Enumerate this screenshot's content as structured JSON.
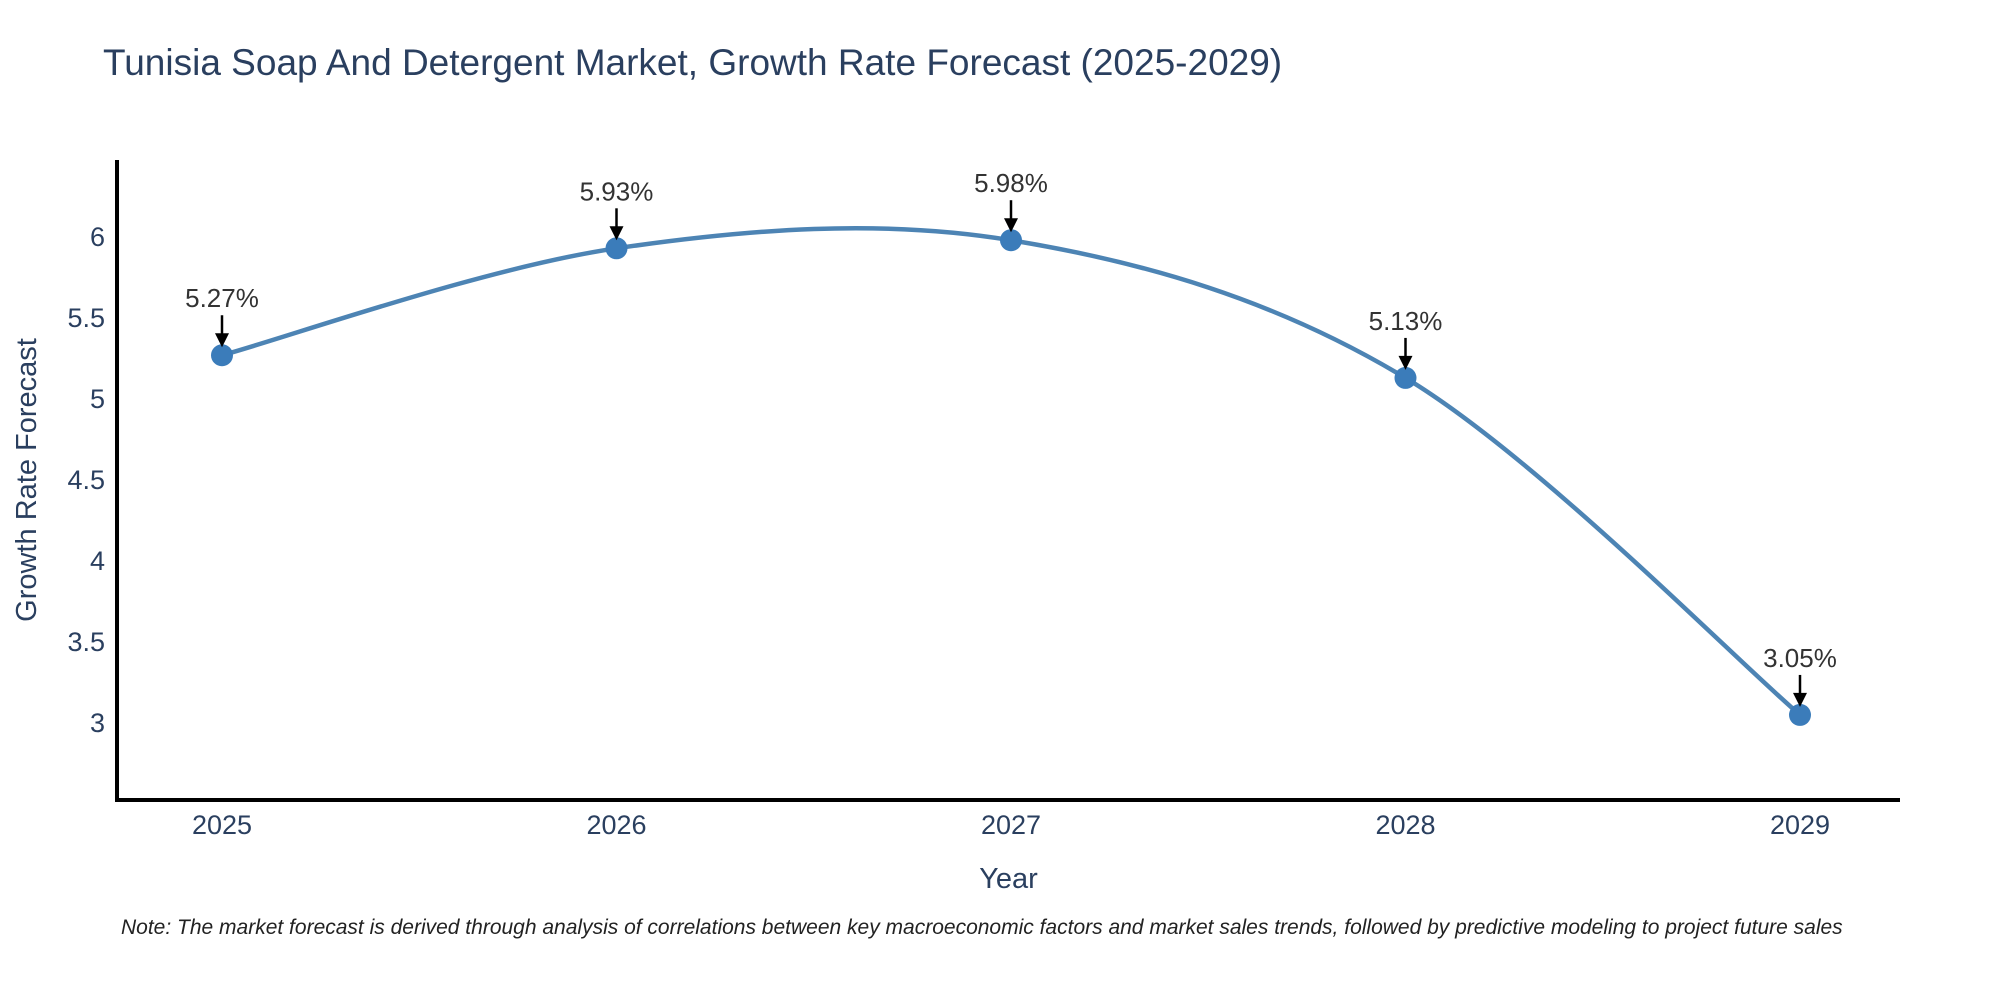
{
  "page": {
    "note": "Note: The market forecast is derived through analysis of correlations between key macroeconomic factors and market sales trends, followed by predictive modeling to project future sales"
  },
  "chart_data": {
    "type": "line",
    "line_shape": "spline",
    "title": "Tunisia Soap And Detergent Market, Growth Rate Forecast (2025-2029)",
    "xlabel": "Year",
    "ylabel": "Growth Rate Forecast",
    "x": [
      2025,
      2026,
      2027,
      2028,
      2029
    ],
    "y": [
      5.27,
      5.93,
      5.98,
      5.13,
      3.05
    ],
    "point_labels": [
      "5.27%",
      "5.93%",
      "5.98%",
      "5.13%",
      "3.05%"
    ],
    "yticks": [
      6,
      5.5,
      5,
      4.5,
      4,
      3.5,
      3
    ],
    "ylim": [
      2.525,
      6.475
    ],
    "grid": false,
    "legend_position": "none",
    "marker_style": "circle",
    "annotation_arrows": true,
    "colors": {
      "line": "#4d84b4",
      "marker": "#3b7cba",
      "axis": "#000000",
      "tick_text": "#2a3f5f",
      "axis_title_text": "#2a3f5f",
      "title_text": "#2a3f5f",
      "annotation_text": "#333333",
      "arrow": "#000000",
      "note_text": "#222222",
      "background": "#ffffff"
    }
  }
}
